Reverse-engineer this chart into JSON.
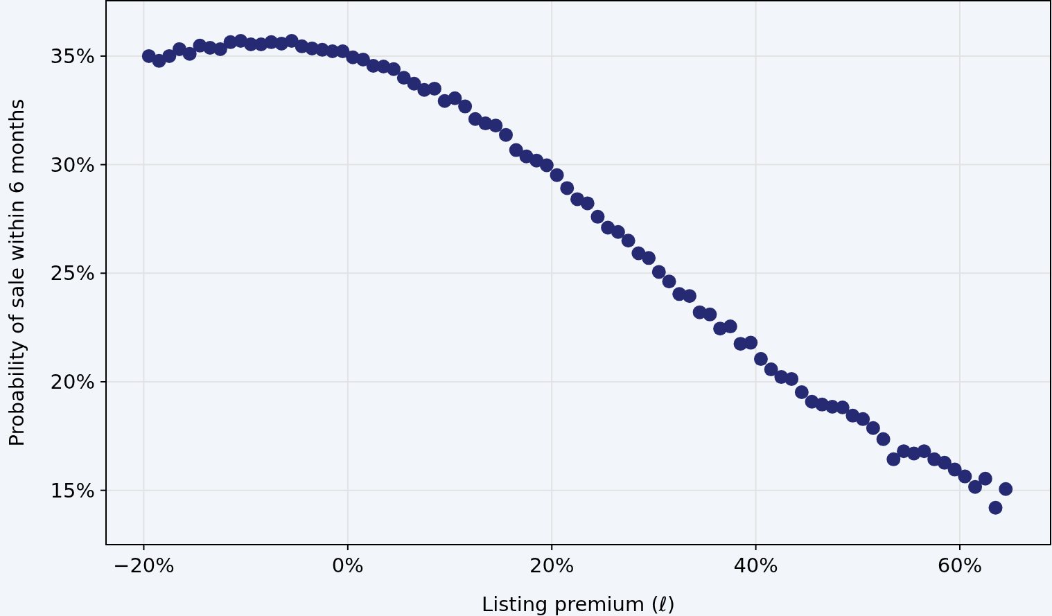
{
  "chart_data": {
    "type": "scatter",
    "xlabel": "Listing premium (ℓ)",
    "ylabel": "Probability of sale within 6 months",
    "x": [
      -19.5,
      -18.5,
      -17.5,
      -16.5,
      -15.5,
      -14.5,
      -13.5,
      -12.5,
      -11.5,
      -10.5,
      -9.5,
      -8.5,
      -7.5,
      -6.5,
      -5.5,
      -4.5,
      -3.5,
      -2.5,
      -1.5,
      -0.5,
      0.5,
      1.5,
      2.5,
      3.5,
      4.5,
      5.5,
      6.5,
      7.5,
      8.5,
      9.5,
      10.5,
      11.5,
      12.5,
      13.5,
      14.5,
      15.5,
      16.5,
      17.5,
      18.5,
      19.5,
      20.5,
      21.5,
      22.5,
      23.5,
      24.5,
      25.5,
      26.5,
      27.5,
      28.5,
      29.5,
      30.5,
      31.5,
      32.5,
      33.5,
      34.5,
      35.5,
      36.5,
      37.5,
      38.5,
      39.5,
      40.5,
      41.5,
      42.5,
      43.5,
      44.5,
      45.5,
      46.5,
      47.5,
      48.5,
      49.5,
      50.5,
      51.5,
      52.5,
      53.5,
      54.5,
      55.5,
      56.5,
      57.5,
      58.5,
      59.5,
      60.5,
      61.5,
      62.5,
      63.5,
      64.5
    ],
    "series": [
      {
        "color": "#262a73",
        "values": [
          35.0,
          34.78,
          35.0,
          35.32,
          35.1,
          35.48,
          35.38,
          35.32,
          35.64,
          35.7,
          35.54,
          35.54,
          35.64,
          35.57,
          35.7,
          35.45,
          35.35,
          35.29,
          35.22,
          35.22,
          34.94,
          34.84,
          34.55,
          34.52,
          34.4,
          34.0,
          33.73,
          33.44,
          33.5,
          32.93,
          33.06,
          32.68,
          32.1,
          31.9,
          31.8,
          31.37,
          30.67,
          30.38,
          30.19,
          29.97,
          29.52,
          28.92,
          28.41,
          28.22,
          27.6,
          27.1,
          26.9,
          26.5,
          25.92,
          25.7,
          25.06,
          24.62,
          24.04,
          23.95,
          23.2,
          23.1,
          22.45,
          22.55,
          21.75,
          21.8,
          21.05,
          20.57,
          20.22,
          20.13,
          19.52,
          19.08,
          18.95,
          18.85,
          18.82,
          18.44,
          18.28,
          17.87,
          17.36,
          16.43,
          16.8,
          16.7,
          16.8,
          16.43,
          16.27,
          15.96,
          15.64,
          15.16,
          15.54,
          14.2,
          15.06
        ]
      }
    ],
    "xlim": [
      -23.7,
      68.9
    ],
    "ylim": [
      12.5,
      37.55
    ],
    "xticks": [
      {
        "value": -20,
        "label": "−20%"
      },
      {
        "value": 0,
        "label": "0%"
      },
      {
        "value": 20,
        "label": "20%"
      },
      {
        "value": 40,
        "label": "40%"
      },
      {
        "value": 60,
        "label": "60%"
      }
    ],
    "yticks": [
      {
        "value": 15,
        "label": "15%"
      },
      {
        "value": 20,
        "label": "20%"
      },
      {
        "value": 25,
        "label": "25%"
      },
      {
        "value": 30,
        "label": "30%"
      },
      {
        "value": 35,
        "label": "35%"
      }
    ],
    "grid": true,
    "marker": "circle"
  }
}
